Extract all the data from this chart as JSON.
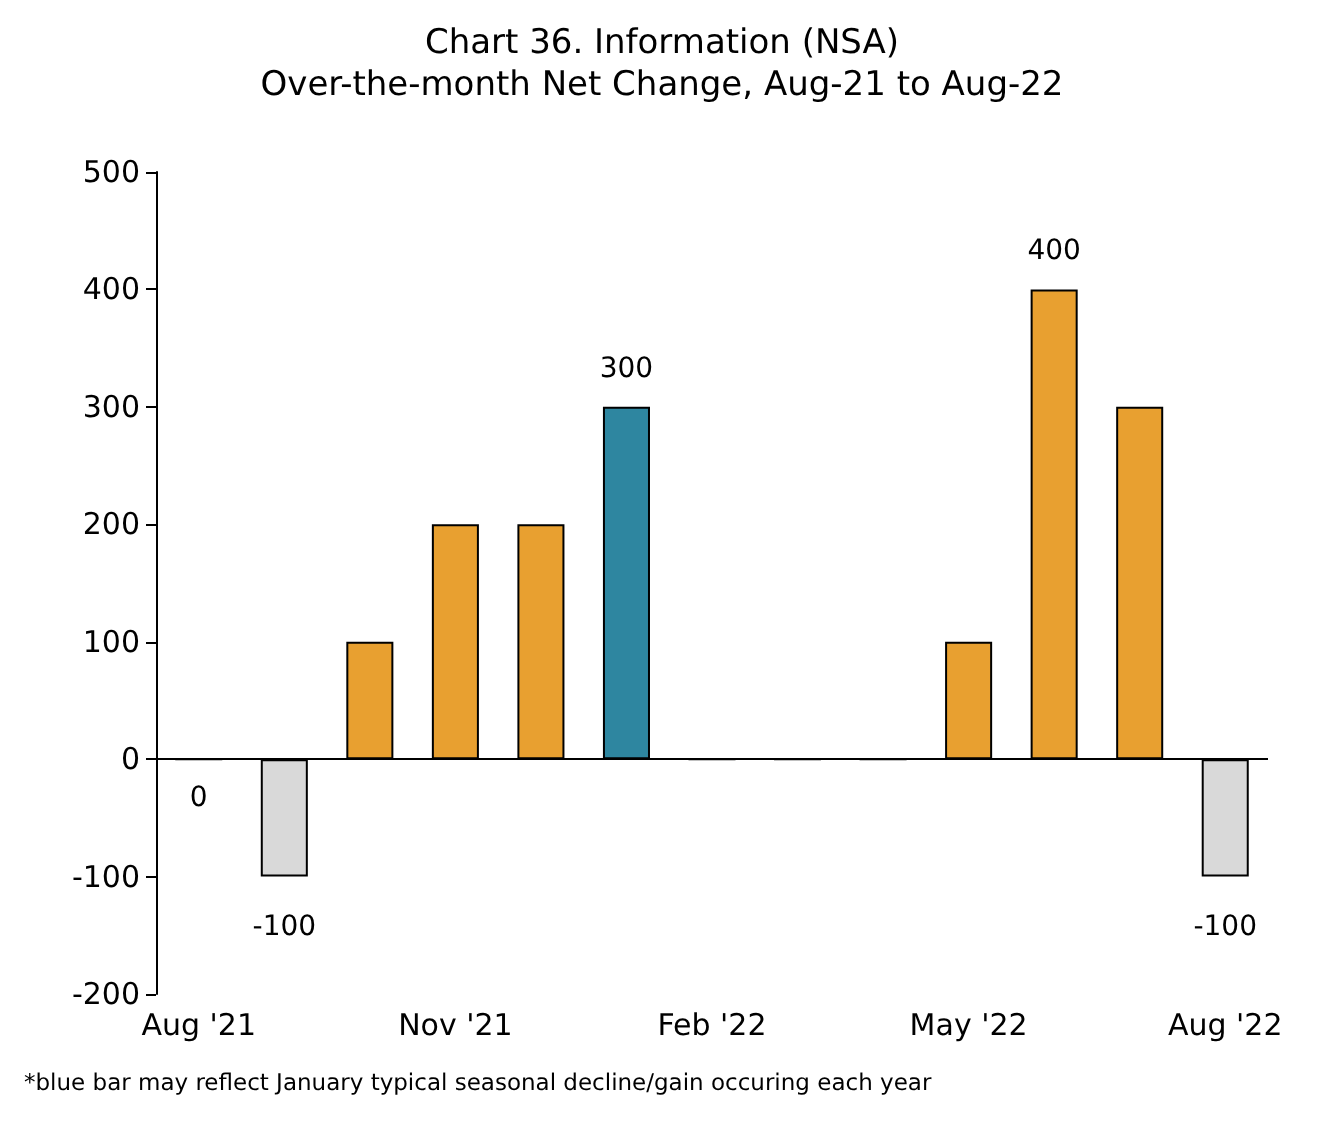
{
  "chart_data": {
    "type": "bar",
    "title": "Chart 36. Information (NSA)",
    "subtitle": "Over-the-month Net Change, Aug-21 to Aug-22",
    "categories": [
      "Aug '21",
      null,
      null,
      "Nov '21",
      null,
      null,
      "Feb '22",
      null,
      null,
      "May '22",
      null,
      null,
      "Aug '22"
    ],
    "values": [
      0,
      -100,
      100,
      200,
      200,
      300,
      0,
      0,
      0,
      100,
      400,
      300,
      -100
    ],
    "colors": [
      "#000000",
      "#d9d9d9",
      "#e8a030",
      "#e8a030",
      "#e8a030",
      "#2e86a0",
      "#000000",
      "#000000",
      "#000000",
      "#e8a030",
      "#e8a030",
      "#e8a030",
      "#d9d9d9"
    ],
    "value_labels": [
      "0",
      "-100",
      null,
      null,
      null,
      "300",
      null,
      null,
      null,
      null,
      "400",
      null,
      "-100"
    ],
    "ylim": [
      -200,
      500
    ],
    "yticks": [
      -200,
      -100,
      0,
      100,
      200,
      300,
      400,
      500
    ],
    "grid": false,
    "ref_lines": [
      {
        "axis": "y",
        "value": 0,
        "color": "#000000"
      }
    ],
    "annotations": [
      "*blue bar may reflect January typical seasonal decline/gain occuring each year"
    ]
  }
}
